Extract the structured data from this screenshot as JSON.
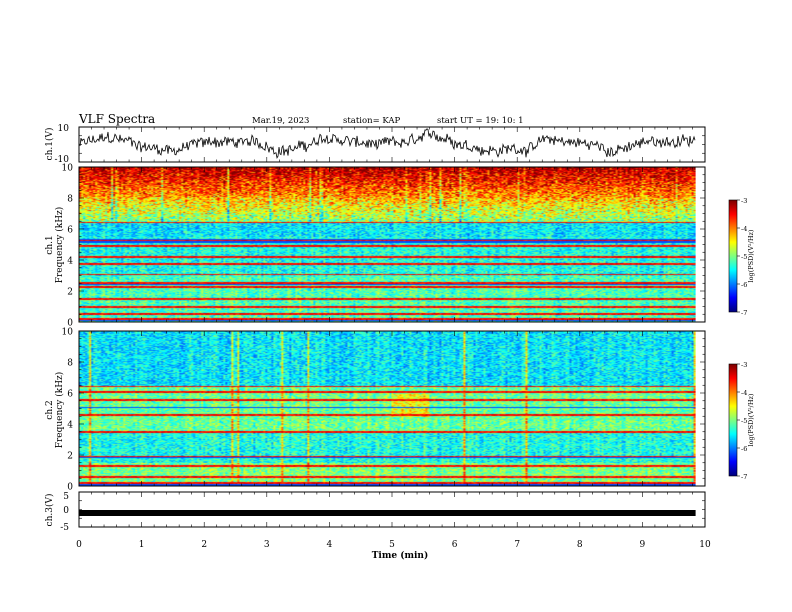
{
  "header": {
    "title": "VLF Spectra",
    "date": "Mar.19, 2023",
    "station": "station= KAP",
    "start": "start  UT =   19: 10: 1"
  },
  "chart_data": [
    {
      "name": "ch1-waveform",
      "type": "line",
      "ylabel": "ch.1(V)",
      "ylim": [
        -10,
        10
      ],
      "yticks": [
        "10",
        "-10"
      ],
      "xlim": [
        0,
        10
      ]
    },
    {
      "name": "ch1-spectrogram",
      "type": "heatmap",
      "ylabel": "ch.1\nFrequency (kHz)",
      "ylim": [
        0,
        10
      ],
      "yticks": [
        "0",
        "2",
        "4",
        "6",
        "8",
        "10"
      ],
      "xlim": [
        0,
        10
      ],
      "data_xmax": 9.85,
      "colorbar": {
        "label": "log(PSD)(V²/Hz)",
        "range": [
          -7,
          -3
        ],
        "ticks": [
          "-3",
          "-4",
          "-5",
          "-6",
          "-7"
        ]
      },
      "bright_lines_khz": [
        0.25,
        0.55,
        1.0,
        1.5,
        2.3,
        2.55,
        3.1,
        3.8,
        4.2,
        4.95,
        5.25,
        5.35,
        6.45
      ],
      "dark_lines_khz": [
        0.15,
        2.45,
        5.2,
        5.35
      ]
    },
    {
      "name": "ch2-spectrogram",
      "type": "heatmap",
      "ylabel": "ch.2\nFrequency (kHz)",
      "ylim": [
        0,
        10
      ],
      "yticks": [
        "0",
        "2",
        "4",
        "6",
        "8",
        "10"
      ],
      "xlim": [
        0,
        10
      ],
      "data_xmax": 9.85,
      "colorbar": {
        "label": "log(PSD)(V²/Hz)",
        "range": [
          -7,
          -3
        ],
        "ticks": [
          "-3",
          "-4",
          "-5",
          "-6",
          "-7"
        ]
      },
      "bright_lines_khz": [
        0.2,
        0.6,
        1.3,
        1.9,
        3.5,
        4.6,
        5.6,
        6.1,
        6.45
      ],
      "dark_lines_khz": [
        0.1,
        1.85,
        5.1
      ]
    },
    {
      "name": "ch3-waveform",
      "type": "line",
      "ylabel": "ch.3(V)",
      "ylim": [
        -5,
        5
      ],
      "yticks": [
        "5",
        "0",
        "-5"
      ],
      "xlim": [
        0,
        10
      ],
      "level": -1,
      "xlabel": "Time (min)",
      "xticks": [
        "0",
        "1",
        "2",
        "3",
        "4",
        "5",
        "6",
        "7",
        "8",
        "9",
        "10"
      ]
    }
  ]
}
